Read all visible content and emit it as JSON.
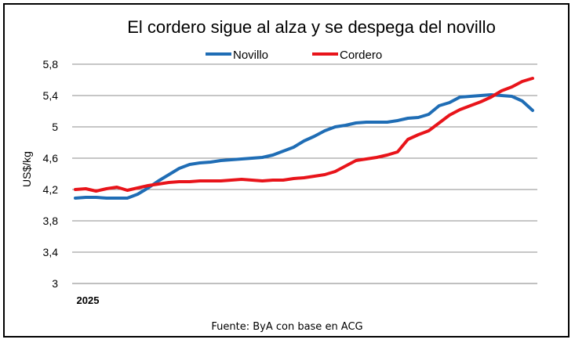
{
  "chart_data": {
    "type": "line",
    "title": "El cordero sigue al alza y se despega del novillo",
    "ylabel": "US$/kg",
    "xlabel": "",
    "ylim": [
      3,
      5.8
    ],
    "yticks": [
      3,
      3.4,
      3.8,
      4.2,
      4.6,
      5,
      5.4,
      5.8
    ],
    "ytick_labels": [
      "3",
      "3,4",
      "3,8",
      "4,2",
      "4,6",
      "5",
      "5,4",
      "5,8"
    ],
    "x_tick_label": "2025",
    "grid": true,
    "legend_position": "top",
    "source": "Fuente: ByA con base en ACG",
    "series": [
      {
        "name": "Novillo",
        "color": "#1f6db5",
        "values": [
          4.09,
          4.1,
          4.1,
          4.09,
          4.09,
          4.09,
          4.14,
          4.22,
          4.31,
          4.39,
          4.47,
          4.52,
          4.54,
          4.55,
          4.57,
          4.58,
          4.59,
          4.6,
          4.61,
          4.64,
          4.69,
          4.74,
          4.82,
          4.88,
          4.95,
          5.0,
          5.02,
          5.05,
          5.06,
          5.06,
          5.06,
          5.08,
          5.11,
          5.12,
          5.16,
          5.27,
          5.31,
          5.38,
          5.39,
          5.4,
          5.41,
          5.4,
          5.39,
          5.33,
          5.21
        ]
      },
      {
        "name": "Cordero",
        "color": "#e8141a",
        "values": [
          4.2,
          4.21,
          4.18,
          4.21,
          4.23,
          4.19,
          4.22,
          4.25,
          4.27,
          4.29,
          4.3,
          4.3,
          4.31,
          4.31,
          4.31,
          4.32,
          4.33,
          4.32,
          4.31,
          4.32,
          4.32,
          4.34,
          4.35,
          4.37,
          4.39,
          4.43,
          4.5,
          4.57,
          4.59,
          4.61,
          4.64,
          4.68,
          4.84,
          4.9,
          4.95,
          5.05,
          5.15,
          5.22,
          5.27,
          5.32,
          5.38,
          5.46,
          5.51,
          5.58,
          5.62
        ]
      }
    ]
  }
}
